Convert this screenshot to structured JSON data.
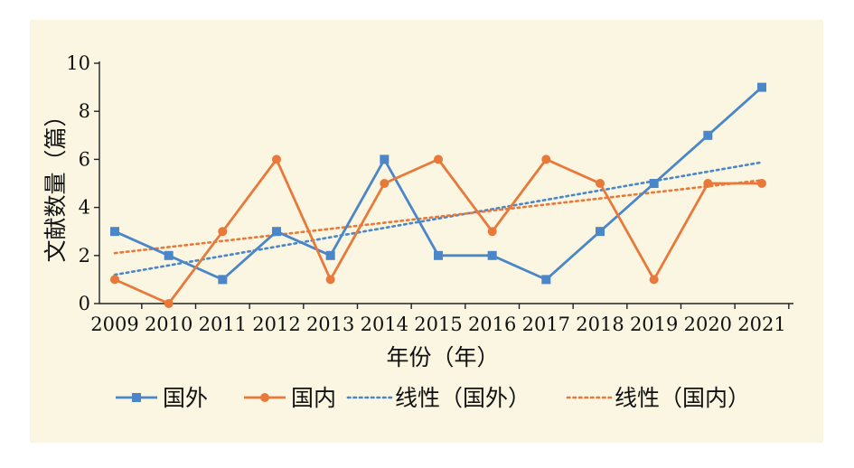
{
  "chart_data": {
    "type": "line",
    "title": "",
    "xlabel": "年份（年）",
    "ylabel": "文献数量（篇）",
    "categories": [
      "2009",
      "2010",
      "2011",
      "2012",
      "2013",
      "2014",
      "2015",
      "2016",
      "2017",
      "2018",
      "2019",
      "2020",
      "2021"
    ],
    "ylim": [
      0,
      10
    ],
    "yticks": [
      0,
      2,
      4,
      6,
      8,
      10
    ],
    "grid": false,
    "legend_position": "bottom",
    "series": [
      {
        "name": "国外",
        "color": "#4a86c8",
        "marker": "square",
        "values": [
          3,
          2,
          1,
          3,
          2,
          6,
          2,
          2,
          1,
          3,
          5,
          7,
          9
        ]
      },
      {
        "name": "国内",
        "color": "#e8793a",
        "marker": "circle",
        "values": [
          1,
          0,
          3,
          6,
          1,
          5,
          6,
          3,
          6,
          5,
          1,
          5,
          5
        ]
      }
    ],
    "trendlines": [
      {
        "name": "线性（国外）",
        "color": "#4a86c8",
        "style": "dotted",
        "of_series": "国外"
      },
      {
        "name": "线性（国内）",
        "color": "#e8793a",
        "style": "dotted",
        "of_series": "国内"
      }
    ]
  }
}
